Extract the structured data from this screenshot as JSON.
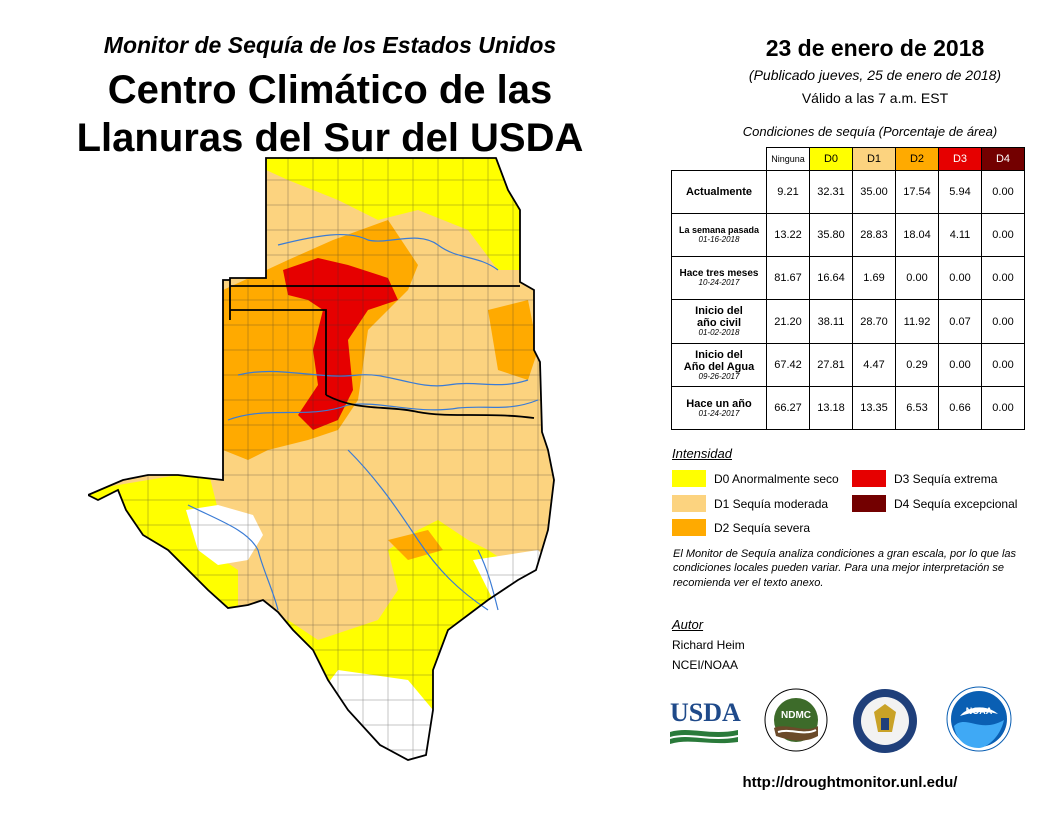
{
  "header": {
    "subtitle": "Monitor de Sequía de los Estados Unidos",
    "region_line1": "Centro Climático de las",
    "region_line2": "Llanuras del Sur del USDA",
    "date": "23 de enero de 2018",
    "published": "(Publicado jueves, 25 de enero de 2018)",
    "valid": "Válido a las 7 a.m. EST"
  },
  "table": {
    "caption": "Condiciones de sequía (Porcentaje de área)",
    "columns": [
      "Ninguna",
      "D0",
      "D1",
      "D2",
      "D3",
      "D4"
    ],
    "rows": [
      {
        "label": "Actualmente",
        "date": "",
        "values": [
          "9.21",
          "32.31",
          "35.00",
          "17.54",
          "5.94",
          "0.00"
        ]
      },
      {
        "label": "La semana pasada",
        "date": "01-16-2018",
        "values": [
          "13.22",
          "35.80",
          "28.83",
          "18.04",
          "4.11",
          "0.00"
        ]
      },
      {
        "label": "Hace tres meses",
        "date": "10-24-2017",
        "values": [
          "81.67",
          "16.64",
          "1.69",
          "0.00",
          "0.00",
          "0.00"
        ]
      },
      {
        "label_line1": "Inicio del",
        "label_line2": "año civil",
        "date": "01-02-2018",
        "values": [
          "21.20",
          "38.11",
          "28.70",
          "11.92",
          "0.07",
          "0.00"
        ]
      },
      {
        "label_line1": "Inicio del",
        "label_line2": "Año del Agua",
        "date": "09-26-2017",
        "values": [
          "67.42",
          "27.81",
          "4.47",
          "0.29",
          "0.00",
          "0.00"
        ]
      },
      {
        "label": "Hace un año",
        "date": "01-24-2017",
        "values": [
          "66.27",
          "13.18",
          "13.35",
          "6.53",
          "0.66",
          "0.00"
        ]
      }
    ]
  },
  "legend": {
    "title": "Intensidad",
    "items": [
      {
        "label": "D0 Anormalmente seco",
        "color": "#ffff00"
      },
      {
        "label": "D1 Sequía moderada",
        "color": "#fcd37f"
      },
      {
        "label": "D2 Sequía severa",
        "color": "#ffaa00"
      },
      {
        "label": "D3 Sequía extrema",
        "color": "#e60000"
      },
      {
        "label": "D4 Sequía excepcional",
        "color": "#730000"
      }
    ]
  },
  "note": "El Monitor de Sequía analiza condiciones a gran escala, por lo que las condiciones locales pueden variar. Para una mejor interpretación se recomienda ver el texto anexo.",
  "author": {
    "label": "Autor",
    "name": "Richard Heim",
    "org": "NCEI/NOAA"
  },
  "logos": {
    "usda": "USDA",
    "ndmc": "NDMC",
    "noaa": "NOAA"
  },
  "url": "http://droughtmonitor.unl.edu/",
  "colors": {
    "none": "#ffffff",
    "d0": "#ffff00",
    "d1": "#fcd37f",
    "d2": "#ffaa00",
    "d3": "#e60000",
    "d4": "#730000",
    "water": "#3a7bd5"
  }
}
